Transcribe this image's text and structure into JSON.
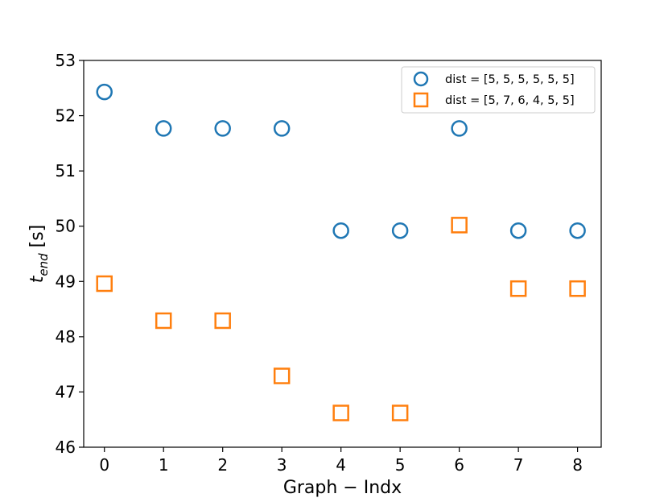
{
  "chart_data": {
    "type": "scatter",
    "title": "",
    "xlabel": "Graph − Indx",
    "ylabel_main": "t",
    "ylabel_sub": "end",
    "ylabel_unit": " [s]",
    "xlim": [
      -0.35,
      8.4
    ],
    "ylim": [
      46,
      53
    ],
    "xticks": [
      0,
      1,
      2,
      3,
      4,
      5,
      6,
      7,
      8
    ],
    "yticks": [
      46,
      47,
      48,
      49,
      50,
      51,
      52,
      53
    ],
    "grid": false,
    "legend_position": "top-right",
    "x": [
      0,
      1,
      2,
      3,
      4,
      5,
      6,
      7,
      8
    ],
    "series": [
      {
        "name": "dist = [5, 5, 5, 5, 5, 5]",
        "marker": "circle",
        "color": "#1f77b4",
        "values": [
          52.43,
          51.77,
          51.77,
          51.77,
          49.92,
          49.92,
          51.77,
          49.92,
          49.92
        ]
      },
      {
        "name": "dist = [5, 7, 6, 4, 5, 5]",
        "marker": "square",
        "color": "#ff7f0e",
        "values": [
          48.96,
          48.29,
          48.29,
          47.29,
          46.62,
          46.62,
          50.02,
          48.87,
          48.87
        ]
      }
    ]
  }
}
